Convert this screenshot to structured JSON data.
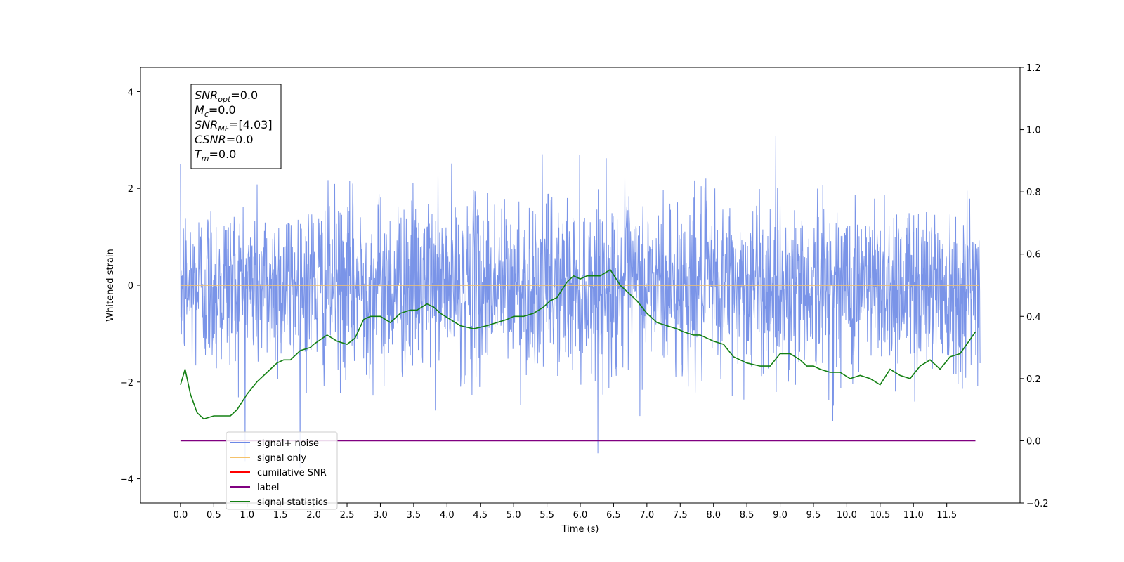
{
  "chart_data": {
    "type": "line",
    "xlabel": "Time (s)",
    "ylabel": "Whitened strain",
    "xlim": [
      -0.6,
      12.6
    ],
    "ylim": [
      -4.5,
      4.5
    ],
    "y2lim": [
      -0.2,
      1.2
    ],
    "x_ticks": [
      0.0,
      0.5,
      1.0,
      1.5,
      2.0,
      2.5,
      3.0,
      3.5,
      4.0,
      4.5,
      5.0,
      5.5,
      6.0,
      6.5,
      7.0,
      7.5,
      8.0,
      8.5,
      9.0,
      9.5,
      10.0,
      10.5,
      11.0,
      11.5
    ],
    "x_tick_labels": [
      "0.0",
      "0.5",
      "1.0",
      "1.5",
      "2.0",
      "2.5",
      "3.0",
      "3.5",
      "4.0",
      "4.5",
      "5.0",
      "5.5",
      "6.0",
      "6.5",
      "7.0",
      "7.5",
      "8.0",
      "8.5",
      "9.0",
      "9.5",
      "10.0",
      "10.5",
      "11.0",
      "11.5"
    ],
    "y_ticks": [
      -4,
      -2,
      0,
      2,
      4
    ],
    "y_tick_labels": [
      "−4",
      "−2",
      "0",
      "2",
      "4"
    ],
    "y2_ticks": [
      -0.2,
      0.0,
      0.2,
      0.4,
      0.6,
      0.8,
      1.0,
      1.2
    ],
    "y2_tick_labels": [
      "−0.2",
      "0.0",
      "0.2",
      "0.4",
      "0.6",
      "0.8",
      "1.0",
      "1.2"
    ],
    "noise": {
      "duration": 12.0,
      "std": 0.9,
      "min": -4.1,
      "max": 3.7,
      "color": "#6b88e6"
    },
    "series": [
      {
        "name": "signal+ noise",
        "color": "#6b88e6",
        "axis": "left"
      },
      {
        "name": "signal only",
        "color": "#f5c26b",
        "axis": "left",
        "x": [
          0.0,
          11.99
        ],
        "values": [
          0.0,
          0.0
        ]
      },
      {
        "name": "cumilative SNR",
        "color": "#ff0000",
        "axis": "right",
        "x": [],
        "values": []
      },
      {
        "name": "label",
        "color": "#800080",
        "axis": "right",
        "x": [
          0.0,
          11.93
        ],
        "values": [
          0.0,
          0.0
        ]
      },
      {
        "name": "signal statistics",
        "color": "#138013",
        "axis": "right",
        "x": [
          0.0,
          0.07,
          0.15,
          0.25,
          0.35,
          0.5,
          0.6,
          0.75,
          0.85,
          1.0,
          1.15,
          1.3,
          1.45,
          1.55,
          1.65,
          1.8,
          1.95,
          2.0,
          2.2,
          2.35,
          2.5,
          2.62,
          2.75,
          2.85,
          3.0,
          3.15,
          3.3,
          3.45,
          3.55,
          3.7,
          3.8,
          3.9,
          4.05,
          4.2,
          4.4,
          4.6,
          4.75,
          4.9,
          5.0,
          5.15,
          5.3,
          5.45,
          5.55,
          5.65,
          5.8,
          5.9,
          6.0,
          6.1,
          6.2,
          6.3,
          6.45,
          6.6,
          6.75,
          6.85,
          7.0,
          7.15,
          7.3,
          7.45,
          7.55,
          7.7,
          7.8,
          7.9,
          8.0,
          8.15,
          8.3,
          8.5,
          8.7,
          8.85,
          9.0,
          9.15,
          9.3,
          9.4,
          9.5,
          9.6,
          9.75,
          9.9,
          10.05,
          10.2,
          10.35,
          10.5,
          10.65,
          10.8,
          10.95,
          11.1,
          11.25,
          11.4,
          11.55,
          11.7,
          11.8,
          11.93
        ],
        "values": [
          0.18,
          0.23,
          0.15,
          0.09,
          0.07,
          0.08,
          0.08,
          0.08,
          0.1,
          0.15,
          0.19,
          0.22,
          0.25,
          0.26,
          0.26,
          0.29,
          0.3,
          0.31,
          0.34,
          0.32,
          0.31,
          0.33,
          0.39,
          0.4,
          0.4,
          0.38,
          0.41,
          0.42,
          0.42,
          0.44,
          0.43,
          0.41,
          0.39,
          0.37,
          0.36,
          0.37,
          0.38,
          0.39,
          0.4,
          0.4,
          0.41,
          0.43,
          0.45,
          0.46,
          0.51,
          0.53,
          0.52,
          0.53,
          0.53,
          0.53,
          0.55,
          0.5,
          0.47,
          0.45,
          0.41,
          0.38,
          0.37,
          0.36,
          0.35,
          0.34,
          0.34,
          0.33,
          0.32,
          0.31,
          0.27,
          0.25,
          0.24,
          0.24,
          0.28,
          0.28,
          0.26,
          0.24,
          0.24,
          0.23,
          0.22,
          0.22,
          0.2,
          0.21,
          0.2,
          0.18,
          0.23,
          0.21,
          0.2,
          0.24,
          0.26,
          0.23,
          0.27,
          0.28,
          0.31,
          0.35
        ]
      }
    ],
    "annotation": {
      "lines": [
        {
          "sym": "SNR",
          "sub": "opt",
          "val": "=0.0"
        },
        {
          "sym": "M",
          "sub": "c",
          "val": "=0.0"
        },
        {
          "sym": "SNR",
          "sub": "MF",
          "val": "=[4.03]"
        },
        {
          "sym": "CSNR",
          "sub": "",
          "val": "=0.0"
        },
        {
          "sym": "T",
          "sub": "m",
          "val": "=0.0"
        }
      ]
    },
    "legend": {
      "placement": "lower-left",
      "entries": [
        "signal+ noise",
        "signal only",
        "cumilative SNR",
        "label",
        "signal statistics"
      ],
      "hidden_text": "label only"
    },
    "grid": false
  }
}
